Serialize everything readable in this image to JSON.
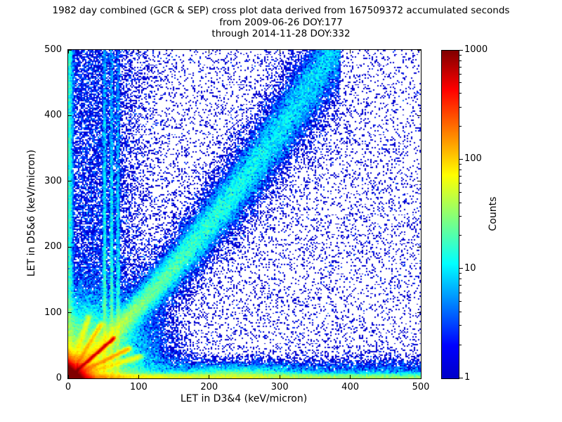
{
  "title": {
    "line1": "1982 day combined (GCR & SEP) cross plot data derived from 167509372 accumulated seconds",
    "line2": "from 2009-06-26 DOY:177",
    "line3": "through 2014-11-28 DOY:332"
  },
  "chart_data": {
    "type": "heatmap",
    "title": "1982 day combined (GCR & SEP) cross plot data derived from 167509372 accumulated seconds from 2009-06-26 DOY:177 through 2014-11-28 DOY:332",
    "xlabel": "LET in D3&4 (keV/micron)",
    "ylabel": "LET in D5&6 (keV/micron)",
    "xlim": [
      0,
      500
    ],
    "ylim": [
      0,
      500
    ],
    "xticks": [
      0,
      100,
      200,
      300,
      400,
      500
    ],
    "yticks": [
      0,
      100,
      200,
      300,
      400,
      500
    ],
    "grid": false,
    "colorbar": {
      "label": "Counts",
      "scale": "log",
      "min": 1,
      "max": 1000,
      "ticks": [
        1,
        10,
        100,
        1000
      ],
      "colormap": "jet",
      "gradient": [
        {
          "color": "#0000c8",
          "pos": 0
        },
        {
          "color": "#0000ff",
          "pos": 10
        },
        {
          "color": "#00ffff",
          "pos": 35
        },
        {
          "color": "#ffff00",
          "pos": 62
        },
        {
          "color": "#ff0000",
          "pos": 88
        },
        {
          "color": "#800000",
          "pos": 100
        }
      ]
    },
    "note": "2D log-count histogram: very hot (red, >1000 counts) core at the origin, a bright red coincidence ridge along y=x up to ~(66,62), a fan of fainter ion tracks from the origin, a hot horizontal band hugging y=0 across all x with a diffuse bump near x=245, a dense column along x=0, vertical striations near x=52,62,71, a broad blue GCR correlation band curving from ~(60,65) up to ~(370,500), and sparse single-count speckle everywhere.",
    "features": [
      {
        "kind": "uniform",
        "n": 11000,
        "x": [
          0,
          500
        ],
        "y": [
          0,
          500
        ]
      },
      {
        "kind": "vstripe",
        "n": 14000,
        "x": 35,
        "w": 38,
        "decay": 0,
        "y": [
          0,
          500
        ]
      },
      {
        "kind": "exp_blob",
        "n": 200000,
        "cx": 0,
        "cy": 0,
        "sx": 7.5,
        "sy": 7.5
      },
      {
        "kind": "qblob",
        "n": 60000,
        "cx": 0,
        "cy": 0,
        "sx": 55,
        "sy": 55
      },
      {
        "kind": "ridge",
        "n": 50000,
        "p0": [
          0,
          0
        ],
        "p1": [
          66,
          62
        ],
        "w": 1.3
      },
      {
        "kind": "ridge",
        "n": 15000,
        "p0": [
          0,
          0
        ],
        "p1": [
          88,
          46
        ],
        "w": 2.2
      },
      {
        "kind": "ridge",
        "n": 11000,
        "p0": [
          0,
          0
        ],
        "p1": [
          48,
          84
        ],
        "w": 2.2
      },
      {
        "kind": "ridge",
        "n": 8000,
        "p0": [
          0,
          0
        ],
        "p1": [
          105,
          34
        ],
        "w": 2.5
      },
      {
        "kind": "ridge",
        "n": 6000,
        "p0": [
          0,
          0
        ],
        "p1": [
          30,
          95
        ],
        "w": 2.5
      },
      {
        "kind": "hstripe",
        "n": 42000,
        "y": 0,
        "w": 4.5,
        "x": [
          0,
          500
        ],
        "skew": 2.4
      },
      {
        "kind": "hstripe",
        "n": 12000,
        "y": 0,
        "w": 15,
        "x": [
          0,
          500
        ],
        "skew": 1.2
      },
      {
        "kind": "gauss_blob",
        "n": 6500,
        "cx": 245,
        "cy": 6,
        "sx": 45,
        "sy": 7
      },
      {
        "kind": "vstripe",
        "n": 12000,
        "x": 1.5,
        "w": 3,
        "decay": 0,
        "y": [
          0,
          500
        ]
      },
      {
        "kind": "vstripe",
        "n": 6500,
        "x": 52,
        "w": 1.5,
        "decay": 260
      },
      {
        "kind": "vstripe",
        "n": 6000,
        "x": 62,
        "w": 1.5,
        "decay": 260
      },
      {
        "kind": "vstripe",
        "n": 5000,
        "x": 71,
        "w": 1.5,
        "decay": 240
      },
      {
        "kind": "curve_band",
        "n": 65000,
        "x0": 12,
        "x1": 385,
        "quad": 0.00085,
        "w0": 7,
        "wslope": 0.065,
        "skew": 1.5
      },
      {
        "kind": "curve_band",
        "n": 16000,
        "x0": 12,
        "x1": 385,
        "quad": 0.00085,
        "w0": 18,
        "wslope": 0.12,
        "skew": 1.3
      }
    ]
  }
}
